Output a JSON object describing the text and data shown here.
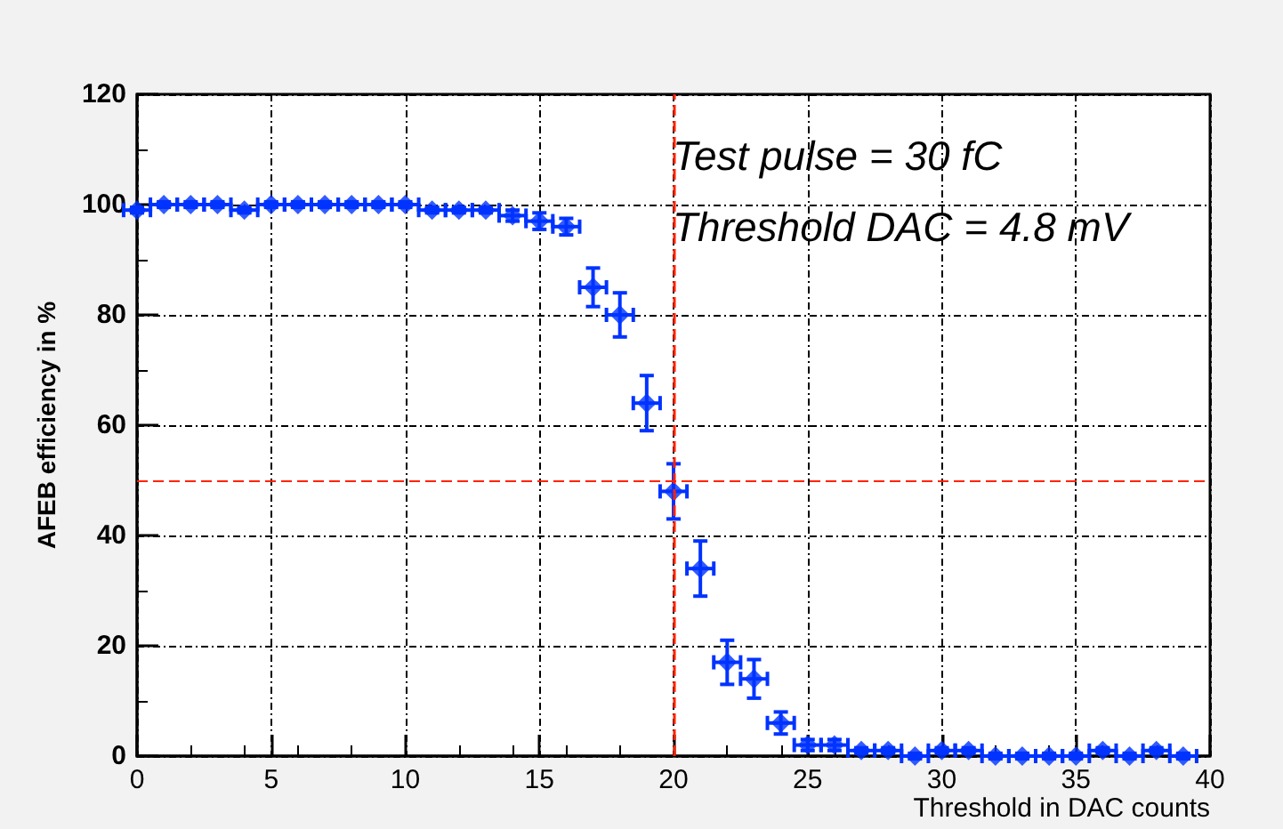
{
  "chart_data": {
    "type": "scatter",
    "xlabel": "Threshold in DAC counts",
    "ylabel": "AFEB efficiency in %",
    "annotations": [
      "Test pulse = 30 fC",
      "Threshold DAC = 4.8 mV"
    ],
    "x": [
      0,
      1,
      2,
      3,
      4,
      5,
      6,
      7,
      8,
      9,
      10,
      11,
      12,
      13,
      14,
      15,
      16,
      17,
      18,
      19,
      20,
      21,
      22,
      23,
      24,
      25,
      26,
      27,
      28,
      29,
      30,
      31,
      32,
      33,
      34,
      35,
      36,
      37,
      38,
      39
    ],
    "series": [
      {
        "color": "#0033ff",
        "values": [
          99,
          100,
          100,
          100,
          99,
          100,
          100,
          100,
          100,
          100,
          100,
          99,
          99,
          99,
          98,
          97,
          96,
          85,
          80,
          64,
          48,
          34,
          17,
          14,
          6,
          2,
          2,
          1,
          1,
          0,
          1,
          1,
          0,
          0,
          0,
          0,
          1,
          0,
          1,
          0
        ],
        "errors": [
          0.5,
          0.5,
          0.5,
          0.5,
          0.5,
          0.5,
          0.5,
          0.5,
          0.5,
          0.5,
          0.5,
          0.5,
          0.5,
          0.5,
          1,
          1.5,
          1.5,
          3.5,
          4,
          5,
          5,
          5,
          4,
          3.5,
          2,
          1,
          1,
          0.5,
          0.5,
          0.5,
          0.5,
          0.5,
          0.5,
          0.5,
          0.5,
          0.5,
          0.5,
          0.5,
          0.5,
          0.5
        ],
        "xerrors": [
          0.5,
          0.5,
          0.5,
          0.5,
          0.5,
          0.5,
          0.5,
          0.5,
          0.5,
          0.5,
          0.5,
          0.5,
          0.5,
          0.5,
          0.5,
          0.5,
          0.5,
          0.5,
          0.5,
          0.5,
          0.5,
          0.5,
          0.5,
          0.5,
          0.5,
          0.5,
          0.5,
          0.5,
          0.5,
          0.5,
          0.5,
          0.5,
          0.5,
          0.5,
          0.5,
          0.5,
          0.5,
          0.5,
          0.5,
          0.5
        ]
      }
    ],
    "xlim": [
      0,
      40
    ],
    "xticks": [
      0,
      5,
      10,
      15,
      20,
      25,
      30,
      35,
      40
    ],
    "ylim": [
      0,
      120
    ],
    "yticks": [
      0,
      20,
      40,
      60,
      80,
      100,
      120
    ],
    "ref_lines": [
      {
        "axis": "x",
        "value": 20,
        "color": "#ff2200",
        "line_style": "dashed"
      },
      {
        "axis": "y",
        "value": 50,
        "color": "#ff2200",
        "line_style": "dashed"
      }
    ],
    "grid": true,
    "marker": "diamond"
  }
}
